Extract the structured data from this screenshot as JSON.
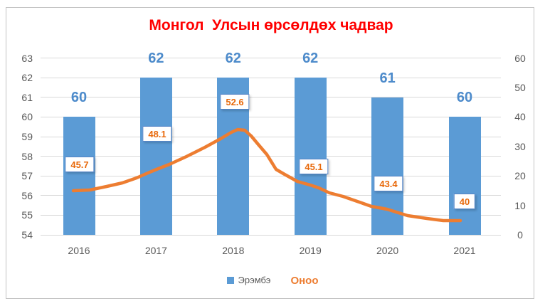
{
  "title": "Монгол  Улсын өрсөлдөх чадвар",
  "legend": {
    "bar_label": "Эрэмбэ",
    "line_label": "Оноо"
  },
  "colors": {
    "title": "#ff0000",
    "bar": "#5b9bd5",
    "bar_value_label": "#4d8bcb",
    "line": "#ed7d31",
    "point_label_text": "#e8690b",
    "point_label_border": "#5585c8",
    "axis_text": "#595959",
    "gridline": "#d9d9d9",
    "frame_border": "#c3c3c3"
  },
  "chart_data": {
    "type": "bar",
    "subtype": "bar-line-combo",
    "title": "Монгол  Улсын өрсөлдөх чадвар",
    "categories": [
      "2016",
      "2017",
      "2018",
      "2019",
      "2020",
      "2021"
    ],
    "series": [
      {
        "name": "Эрэмбэ",
        "type": "bar",
        "axis": "left",
        "color": "#5b9bd5",
        "values": [
          60,
          62,
          62,
          62,
          61,
          60
        ],
        "value_labels": [
          "60",
          "62",
          "62",
          "62",
          "61",
          "60"
        ]
      },
      {
        "name": "Оноо",
        "type": "line",
        "color": "#ed7d31",
        "values": [
          45.7,
          48.1,
          52.6,
          45.1,
          43.4,
          40
        ],
        "value_labels": [
          "45.7",
          "48.1",
          "52.6",
          "45.1",
          "43.4",
          "40"
        ]
      }
    ],
    "left_axis": {
      "min": 54,
      "max": 63,
      "step": 1,
      "ticks": [
        63,
        62,
        61,
        60,
        59,
        58,
        57,
        56,
        55,
        54
      ]
    },
    "right_axis": {
      "min": 0,
      "max": 60,
      "step": 10,
      "ticks": [
        60,
        50,
        40,
        30,
        20,
        10,
        0
      ]
    },
    "grid": true,
    "legend_position": "bottom",
    "xlabel": "",
    "ylabel": ""
  }
}
